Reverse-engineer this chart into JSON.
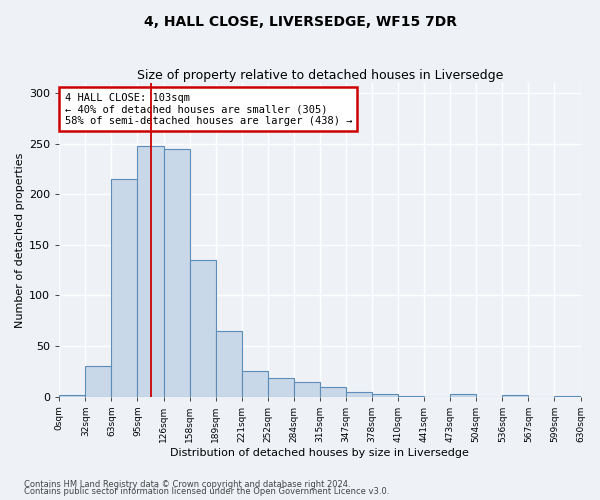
{
  "title": "4, HALL CLOSE, LIVERSEDGE, WF15 7DR",
  "subtitle": "Size of property relative to detached houses in Liversedge",
  "xlabel": "Distribution of detached houses by size in Liversedge",
  "ylabel": "Number of detached properties",
  "bar_values": [
    2,
    30,
    215,
    248,
    245,
    135,
    65,
    25,
    18,
    14,
    9,
    4,
    3,
    1,
    0,
    3,
    0,
    2,
    0,
    1
  ],
  "x_labels": [
    "0sqm",
    "32sqm",
    "63sqm",
    "95sqm",
    "126sqm",
    "158sqm",
    "189sqm",
    "221sqm",
    "252sqm",
    "284sqm",
    "315sqm",
    "347sqm",
    "378sqm",
    "410sqm",
    "441sqm",
    "473sqm",
    "504sqm",
    "536sqm",
    "567sqm",
    "599sqm",
    "630sqm"
  ],
  "bar_color": "#c8d8e8",
  "bar_edge_color": "#5b8db8",
  "annotation_box_text": "4 HALL CLOSE: 103sqm\n← 40% of detached houses are smaller (305)\n58% of semi-detached houses are larger (438) →",
  "annotation_box_color": "#ffffff",
  "annotation_box_edge_color": "#cc0000",
  "vline_color": "#cc0000",
  "vline_x": 3.5,
  "ylim": [
    0,
    310
  ],
  "yticks": [
    0,
    50,
    100,
    150,
    200,
    250,
    300
  ],
  "background_color": "#eef2f7",
  "grid_color": "#ffffff",
  "footer_line1": "Contains HM Land Registry data © Crown copyright and database right 2024.",
  "footer_line2": "Contains public sector information licensed under the Open Government Licence v3.0."
}
